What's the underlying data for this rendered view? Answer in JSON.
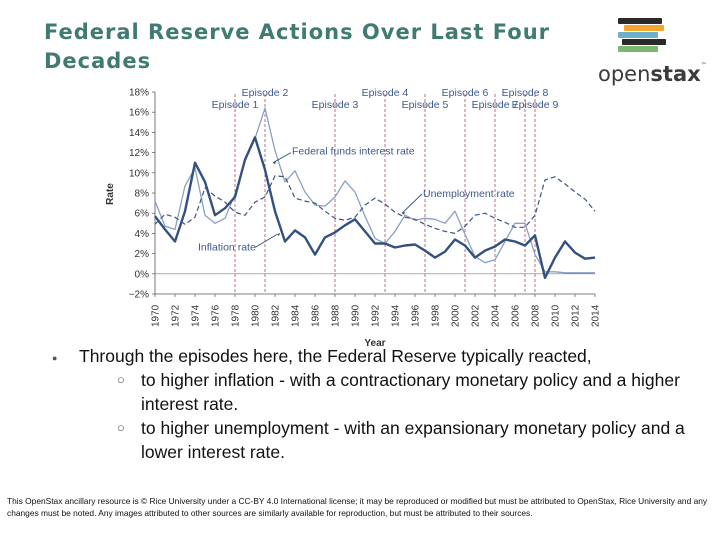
{
  "slide": {
    "title": "Federal Reserve Actions Over Last Four Decades",
    "footer": "This OpenStax ancillary resource is © Rice University under a CC-BY 4.0 International license; it may be reproduced or modified but must be attributed to OpenStax, Rice University and any changes must be noted.  Any images attributed to other sources are similarly available for reproduction, but must be attributed to their sources."
  },
  "logo": {
    "text_light": "open",
    "text_bold": "stax",
    "tm": "™",
    "colors": [
      "#2a2a2a",
      "#f4a52c",
      "#6eb0c9",
      "#2a2a2a",
      "#7cb66f"
    ]
  },
  "bullets": {
    "main": "Through the episodes here, the Federal Reserve typically reacted,",
    "sub": [
      "to higher inflation - with a contractionary monetary policy and a higher interest rate.",
      "to higher unemployment - with an expansionary monetary policy and a lower interest rate."
    ]
  },
  "chart_data": {
    "type": "line",
    "xlabel": "Year",
    "ylabel": "Rate",
    "xlim": [
      1970,
      2014
    ],
    "ylim": [
      -2,
      18
    ],
    "yticks": [
      "−2%",
      "0%",
      "2%",
      "4%",
      "6%",
      "8%",
      "10%",
      "12%",
      "14%",
      "16%",
      "18%"
    ],
    "ytick_values": [
      -2,
      0,
      2,
      4,
      6,
      8,
      10,
      12,
      14,
      16,
      18
    ],
    "xticks": [
      "1970",
      "1972",
      "1974",
      "1976",
      "1978",
      "1980",
      "1982",
      "1984",
      "1986",
      "1988",
      "1990",
      "1992",
      "1994",
      "1996",
      "1998",
      "2000",
      "2002",
      "2004",
      "2006",
      "2008",
      "2010",
      "2012",
      "2014"
    ],
    "xtick_values": [
      1970,
      1972,
      1974,
      1976,
      1978,
      1980,
      1982,
      1984,
      1986,
      1988,
      1990,
      1992,
      1994,
      1996,
      1998,
      2000,
      2002,
      2004,
      2006,
      2008,
      2010,
      2012,
      2014
    ],
    "episodes": [
      {
        "label": "Episode 1",
        "year": 1978
      },
      {
        "label": "Episode 2",
        "year": 1981
      },
      {
        "label": "Episode 3",
        "year": 1988
      },
      {
        "label": "Episode 4",
        "year": 1993
      },
      {
        "label": "Episode 5",
        "year": 1997
      },
      {
        "label": "Episode 6",
        "year": 2001
      },
      {
        "label": "Episode 7",
        "year": 2004
      },
      {
        "label": "Episode 8",
        "year": 2007
      },
      {
        "label": "Episode 9",
        "year": 2008
      }
    ],
    "series": [
      {
        "name": "Federal funds interest rate",
        "style": "solid-light",
        "color": "#8aa0c2",
        "x": [
          1970,
          1971,
          1972,
          1973,
          1974,
          1975,
          1976,
          1977,
          1978,
          1979,
          1980,
          1981,
          1982,
          1983,
          1984,
          1985,
          1986,
          1987,
          1988,
          1989,
          1990,
          1991,
          1992,
          1993,
          1994,
          1995,
          1996,
          1997,
          1998,
          1999,
          2000,
          2001,
          2002,
          2003,
          2004,
          2005,
          2006,
          2007,
          2008,
          2009,
          2010,
          2011,
          2012,
          2013,
          2014
        ],
        "y": [
          7.2,
          4.7,
          4.4,
          8.7,
          10.5,
          5.8,
          5.0,
          5.5,
          7.9,
          11.2,
          13.4,
          16.4,
          12.2,
          9.1,
          10.2,
          8.1,
          6.8,
          6.7,
          7.6,
          9.2,
          8.1,
          5.7,
          3.5,
          3.0,
          4.2,
          5.8,
          5.3,
          5.5,
          5.4,
          5.0,
          6.2,
          3.9,
          1.7,
          1.1,
          1.4,
          3.2,
          5.0,
          5.0,
          1.9,
          0.2,
          0.2,
          0.1,
          0.1,
          0.1,
          0.1
        ]
      },
      {
        "name": "Unemployment rate",
        "style": "dashed",
        "color": "#3d5482",
        "x": [
          1970,
          1971,
          1972,
          1973,
          1974,
          1975,
          1976,
          1977,
          1978,
          1979,
          1980,
          1981,
          1982,
          1983,
          1984,
          1985,
          1986,
          1987,
          1988,
          1989,
          1990,
          1991,
          1992,
          1993,
          1994,
          1995,
          1996,
          1997,
          1998,
          1999,
          2000,
          2001,
          2002,
          2003,
          2004,
          2005,
          2006,
          2007,
          2008,
          2009,
          2010,
          2011,
          2012,
          2013,
          2014
        ],
        "y": [
          4.9,
          5.9,
          5.6,
          4.9,
          5.6,
          8.5,
          7.7,
          7.1,
          6.1,
          5.8,
          7.1,
          7.6,
          9.7,
          9.6,
          7.5,
          7.2,
          7.0,
          6.2,
          5.5,
          5.3,
          5.6,
          6.8,
          7.5,
          6.9,
          6.1,
          5.6,
          5.4,
          4.9,
          4.5,
          4.2,
          4.0,
          4.7,
          5.8,
          6.0,
          5.5,
          5.1,
          4.6,
          4.6,
          5.8,
          9.3,
          9.6,
          8.9,
          8.1,
          7.4,
          6.2
        ]
      },
      {
        "name": "Inflation rate",
        "style": "solid-bold",
        "color": "#34507e",
        "x": [
          1970,
          1971,
          1972,
          1973,
          1974,
          1975,
          1976,
          1977,
          1978,
          1979,
          1980,
          1981,
          1982,
          1983,
          1984,
          1985,
          1986,
          1987,
          1988,
          1989,
          1990,
          1991,
          1992,
          1993,
          1994,
          1995,
          1996,
          1997,
          1998,
          1999,
          2000,
          2001,
          2002,
          2003,
          2004,
          2005,
          2006,
          2007,
          2008,
          2009,
          2010,
          2011,
          2012,
          2013,
          2014
        ],
        "y": [
          5.7,
          4.4,
          3.2,
          6.2,
          11.0,
          9.1,
          5.8,
          6.5,
          7.6,
          11.3,
          13.5,
          10.3,
          6.2,
          3.2,
          4.3,
          3.6,
          1.9,
          3.6,
          4.1,
          4.8,
          5.4,
          4.2,
          3.0,
          3.0,
          2.6,
          2.8,
          2.9,
          2.3,
          1.6,
          2.2,
          3.4,
          2.8,
          1.6,
          2.3,
          2.7,
          3.4,
          3.2,
          2.8,
          3.8,
          -0.4,
          1.6,
          3.2,
          2.1,
          1.5,
          1.6
        ]
      }
    ],
    "annotations": [
      {
        "text": "Federal funds interest rate",
        "points_to": "Federal funds interest rate",
        "near_year": 1983
      },
      {
        "text": "Unemployment rate",
        "points_to": "Unemployment rate",
        "near_year": 1995
      },
      {
        "text": "Inflation rate",
        "points_to": "Inflation rate",
        "near_year": 1982
      },
      {
        "text": "Year",
        "role": "x-axis-label"
      },
      {
        "text": "Rate",
        "role": "y-axis-label"
      }
    ],
    "grid": false,
    "legend": "none"
  }
}
